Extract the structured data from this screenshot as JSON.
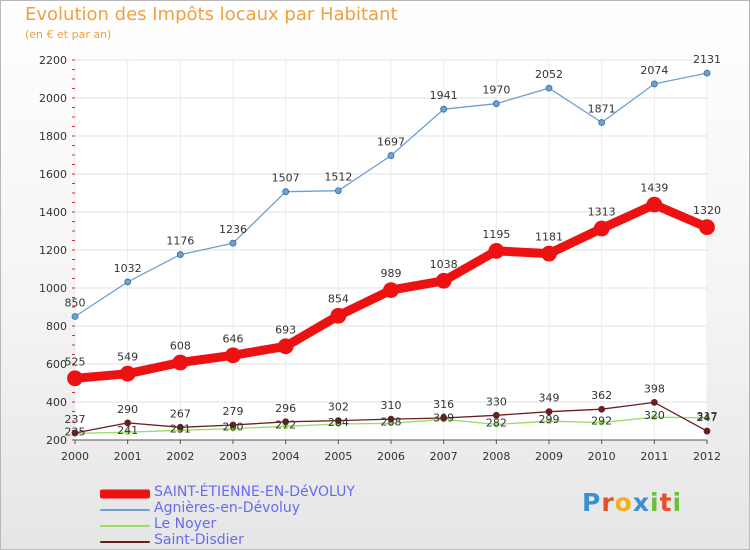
{
  "title": "Evolution des Impôts locaux par Habitant",
  "subtitle": "(en € et par an)",
  "logo": "Proxiti",
  "chart_data": {
    "type": "line",
    "x": [
      "2000",
      "2001",
      "2002",
      "2003",
      "2004",
      "2005",
      "2006",
      "2007",
      "2008",
      "2009",
      "2010",
      "2011",
      "2012"
    ],
    "ylim": [
      200,
      2200
    ],
    "yticks": [
      "200",
      "400",
      "600",
      "800",
      "1000",
      "1200",
      "1400",
      "1600",
      "1800",
      "2000",
      "2200"
    ],
    "grid": true,
    "legend_position": "bottom-left",
    "series": [
      {
        "name": "SAINT-ÉTIENNE-EN-DéVOLUY",
        "color": "#ee1111",
        "values": [
          525,
          549,
          608,
          646,
          693,
          854,
          989,
          1038,
          1195,
          1181,
          1313,
          1439,
          1320
        ],
        "labels": [
          "525",
          "549",
          "608",
          "646",
          "693",
          "854",
          "989",
          "1038",
          "1195",
          "1181",
          "1313",
          "1439",
          "1320"
        ]
      },
      {
        "name": "Agnières-en-Dévoluy",
        "color": "#6fa0cf",
        "values": [
          850,
          1032,
          1176,
          1236,
          1507,
          1512,
          1697,
          1941,
          1970,
          2052,
          1871,
          2074,
          2131
        ],
        "labels": [
          "850",
          "1032",
          "1176",
          "1236",
          "1507",
          "1512",
          "1697",
          "1941",
          "1970",
          "2052",
          "1871",
          "2074",
          "2131"
        ]
      },
      {
        "name": "Le Noyer",
        "color": "#99dd66",
        "values": [
          235,
          241,
          251,
          260,
          272,
          284,
          288,
          309,
          282,
          299,
          292,
          320,
          317
        ],
        "labels": [
          "235",
          "241",
          "251",
          "260",
          "272",
          "284",
          "288",
          "309",
          "282",
          "299",
          "292",
          "320",
          "317"
        ]
      },
      {
        "name": "Saint-Disdier",
        "color": "#6a1f1f",
        "values": [
          237,
          290,
          267,
          279,
          296,
          302,
          310,
          316,
          330,
          349,
          362,
          398,
          247
        ],
        "labels": [
          "237",
          "290",
          "267",
          "279",
          "296",
          "302",
          "310",
          "316",
          "330",
          "349",
          "362",
          "398",
          "247"
        ]
      }
    ]
  }
}
